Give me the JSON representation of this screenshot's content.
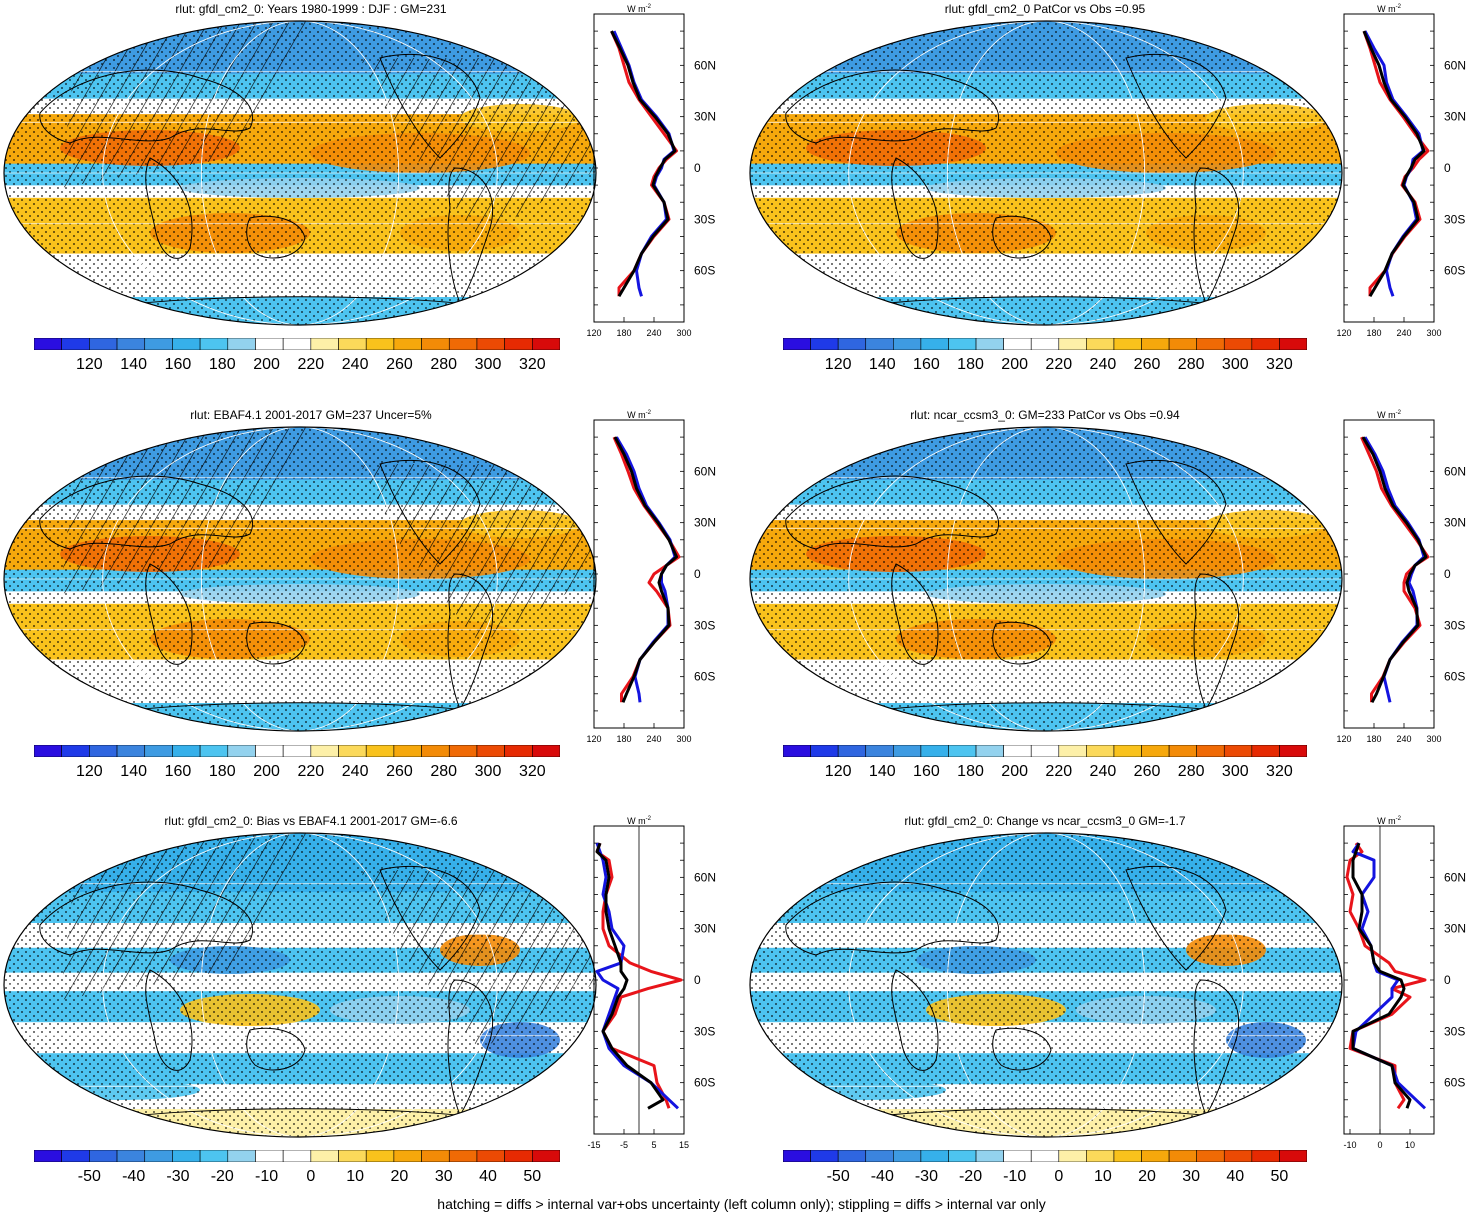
{
  "footer": "hatching = diffs > internal var+obs uncertainty (left column only); stippling = diffs > internal var only",
  "palette_abs": [
    "#2a0ee0",
    "#1f3ae8",
    "#2f66e0",
    "#3b84de",
    "#3e9be2",
    "#36b0ea",
    "#4dc4f0",
    "#93d2ee",
    "#ffffff",
    "#ffffff",
    "#fdf0a8",
    "#fbd95a",
    "#f9c21c",
    "#f6a80c",
    "#f38b07",
    "#f06a05",
    "#ec4a04",
    "#e62a02",
    "#d80a0a"
  ],
  "palette_diff": [
    "#2a0ee0",
    "#1f3ae8",
    "#2f66e0",
    "#3b84de",
    "#3e9be2",
    "#36b0ea",
    "#4dc4f0",
    "#93d2ee",
    "#ffffff",
    "#ffffff",
    "#fdf0a8",
    "#fbd95a",
    "#f9c21c",
    "#f6a80c",
    "#f38b07",
    "#f06a05",
    "#ec4a04",
    "#e62a02",
    "#d80a0a"
  ],
  "line_colors": {
    "red": "#e8141a",
    "blue": "#1414e0",
    "black": "#000000"
  },
  "unit_label": "W m",
  "unit_exp": "-2",
  "lat_ticks": [
    "60N",
    "30N",
    "0",
    "30S",
    "60S"
  ],
  "chart_data": [
    {
      "type": "heatmap",
      "id": "p1",
      "title": "rlut: gfdl_cm2_0: Years 1980-1999 : DJF : GM=231",
      "colorbar_labels": [
        "120",
        "140",
        "160",
        "180",
        "200",
        "220",
        "240",
        "260",
        "280",
        "300",
        "320"
      ],
      "colorbar_kind": "abs",
      "hatched": true,
      "profile": {
        "x_ticks": [
          "120",
          "180",
          "240",
          "300"
        ],
        "xlim": [
          120,
          300
        ],
        "zero_line": false,
        "lat": [
          80,
          70,
          60,
          50,
          40,
          30,
          20,
          10,
          5,
          0,
          -5,
          -10,
          -20,
          -30,
          -40,
          -50,
          -60,
          -70,
          -75
        ],
        "red": [
          155,
          170,
          180,
          190,
          210,
          235,
          260,
          285,
          265,
          250,
          240,
          235,
          260,
          270,
          240,
          215,
          200,
          170,
          170
        ],
        "blue": [
          160,
          175,
          190,
          200,
          215,
          245,
          270,
          280,
          260,
          255,
          245,
          240,
          260,
          265,
          235,
          215,
          205,
          210,
          215
        ],
        "black": [
          155,
          172,
          188,
          198,
          212,
          242,
          268,
          282,
          262,
          252,
          243,
          238,
          260,
          268,
          238,
          215,
          200,
          180,
          170
        ]
      }
    },
    {
      "type": "heatmap",
      "id": "p2",
      "title": "rlut: gfdl_cm2_0 PatCor vs Obs =0.95",
      "colorbar_labels": [
        "120",
        "140",
        "160",
        "180",
        "200",
        "220",
        "240",
        "260",
        "280",
        "300",
        "320"
      ],
      "colorbar_kind": "abs",
      "hatched": false,
      "profile": {
        "x_ticks": [
          "120",
          "180",
          "240",
          "300"
        ],
        "xlim": [
          120,
          300
        ],
        "zero_line": false,
        "lat": [
          80,
          70,
          60,
          50,
          40,
          30,
          20,
          10,
          5,
          0,
          -5,
          -10,
          -20,
          -30,
          -40,
          -50,
          -60,
          -70,
          -75
        ],
        "red": [
          160,
          172,
          182,
          192,
          212,
          238,
          262,
          288,
          270,
          258,
          242,
          236,
          262,
          272,
          242,
          217,
          202,
          172,
          172
        ],
        "blue": [
          162,
          180,
          200,
          205,
          218,
          245,
          270,
          278,
          258,
          255,
          245,
          240,
          258,
          265,
          238,
          216,
          205,
          212,
          218
        ],
        "black": [
          160,
          174,
          190,
          200,
          214,
          242,
          266,
          280,
          262,
          254,
          244,
          238,
          260,
          268,
          240,
          216,
          202,
          182,
          172
        ]
      }
    },
    {
      "type": "heatmap",
      "id": "p3",
      "title": "rlut: EBAF4.1 2001-2017 GM=237 Uncer=5%",
      "colorbar_labels": [
        "120",
        "140",
        "160",
        "180",
        "200",
        "220",
        "240",
        "260",
        "280",
        "300",
        "320"
      ],
      "colorbar_kind": "abs",
      "hatched": true,
      "profile": {
        "x_ticks": [
          "120",
          "180",
          "240",
          "300"
        ],
        "xlim": [
          120,
          300
        ],
        "zero_line": false,
        "lat": [
          80,
          70,
          60,
          50,
          40,
          30,
          20,
          10,
          5,
          0,
          -5,
          -10,
          -20,
          -30,
          -40,
          -50,
          -60,
          -70,
          -75
        ],
        "red": [
          160,
          175,
          188,
          200,
          220,
          245,
          270,
          290,
          265,
          240,
          230,
          245,
          268,
          272,
          240,
          212,
          198,
          175,
          175
        ],
        "blue": [
          165,
          185,
          200,
          210,
          225,
          250,
          272,
          282,
          265,
          255,
          255,
          262,
          268,
          268,
          238,
          212,
          202,
          210,
          212
        ],
        "black": [
          162,
          180,
          195,
          205,
          222,
          248,
          270,
          285,
          265,
          255,
          250,
          255,
          268,
          270,
          240,
          212,
          200,
          185,
          178
        ]
      }
    },
    {
      "type": "heatmap",
      "id": "p4",
      "title": "rlut: ncar_ccsm3_0: GM=233 PatCor vs Obs =0.94",
      "colorbar_labels": [
        "120",
        "140",
        "160",
        "180",
        "200",
        "220",
        "240",
        "260",
        "280",
        "300",
        "320"
      ],
      "colorbar_kind": "abs",
      "hatched": false,
      "profile": {
        "x_ticks": [
          "120",
          "180",
          "240",
          "300"
        ],
        "xlim": [
          120,
          300
        ],
        "zero_line": false,
        "lat": [
          80,
          70,
          60,
          50,
          40,
          30,
          20,
          10,
          5,
          0,
          -5,
          -10,
          -20,
          -30,
          -40,
          -50,
          -60,
          -70,
          -75
        ],
        "red": [
          155,
          170,
          185,
          195,
          215,
          240,
          265,
          288,
          262,
          245,
          240,
          240,
          262,
          272,
          240,
          212,
          198,
          175,
          175
        ],
        "blue": [
          162,
          182,
          198,
          208,
          222,
          248,
          270,
          280,
          262,
          255,
          250,
          258,
          266,
          266,
          236,
          212,
          200,
          208,
          212
        ],
        "black": [
          158,
          178,
          192,
          202,
          218,
          245,
          268,
          284,
          262,
          252,
          246,
          250,
          265,
          268,
          238,
          212,
          199,
          185,
          176
        ]
      }
    },
    {
      "type": "heatmap",
      "id": "p5",
      "title": "rlut: gfdl_cm2_0: Bias vs EBAF4.1 2001-2017 GM=-6.6",
      "colorbar_labels": [
        "-50",
        "-40",
        "-30",
        "-20",
        "-10",
        "0",
        "10",
        "20",
        "30",
        "40",
        "50"
      ],
      "colorbar_kind": "diff",
      "hatched": true,
      "profile": {
        "x_ticks": [
          "-15",
          "-5",
          "5",
          "15"
        ],
        "xlim": [
          -15,
          15
        ],
        "zero_line": true,
        "lat": [
          80,
          75,
          70,
          60,
          50,
          40,
          30,
          20,
          10,
          5,
          0,
          -5,
          -10,
          -20,
          -30,
          -40,
          -50,
          -60,
          -70,
          -75
        ],
        "red": [
          -13,
          -14,
          -10,
          -9,
          -11,
          -12,
          -12,
          -10,
          -3,
          4,
          14,
          3,
          -6,
          -8,
          -12,
          -9,
          5,
          6,
          9,
          10
        ],
        "blue": [
          -14,
          -13,
          -12,
          -11,
          -12,
          -10,
          -9,
          -5,
          -6,
          -14,
          -12,
          -7,
          -8,
          -10,
          -12,
          -10,
          -5,
          4,
          10,
          13
        ],
        "black": [
          -13,
          -14,
          -11,
          -10,
          -11,
          -11,
          -10,
          -8,
          -6,
          -6,
          -4,
          -5,
          -7,
          -9,
          -12,
          -9,
          -4,
          4,
          8,
          3
        ]
      }
    },
    {
      "type": "heatmap",
      "id": "p6",
      "title": "rlut: gfdl_cm2_0: Change vs ncar_ccsm3_0 GM=-1.7",
      "colorbar_labels": [
        "-50",
        "-40",
        "-30",
        "-20",
        "-10",
        "0",
        "10",
        "20",
        "30",
        "40",
        "50"
      ],
      "colorbar_kind": "diff",
      "hatched": false,
      "profile": {
        "x_ticks": [
          "-10",
          "0",
          "10"
        ],
        "xlim": [
          -12,
          18
        ],
        "zero_line": true,
        "lat": [
          80,
          75,
          70,
          60,
          50,
          40,
          30,
          20,
          10,
          5,
          0,
          -5,
          -10,
          -20,
          -30,
          -40,
          -50,
          -60,
          -70,
          -75
        ],
        "red": [
          -8,
          -6,
          -10,
          -11,
          -9,
          -10,
          -7,
          -5,
          3,
          5,
          15,
          4,
          10,
          4,
          -9,
          -10,
          5,
          5,
          8,
          6
        ],
        "blue": [
          -7,
          -9,
          -2,
          -2,
          -6,
          -4,
          -6,
          -3,
          -2,
          -1,
          6,
          4,
          4,
          -2,
          -8,
          -9,
          4,
          6,
          12,
          15
        ],
        "black": [
          -7,
          -8,
          -9,
          -9,
          -6,
          -6,
          -7,
          -3,
          -2,
          0,
          7,
          8,
          7,
          3,
          -9,
          -9,
          4,
          5,
          10,
          9
        ]
      }
    }
  ]
}
